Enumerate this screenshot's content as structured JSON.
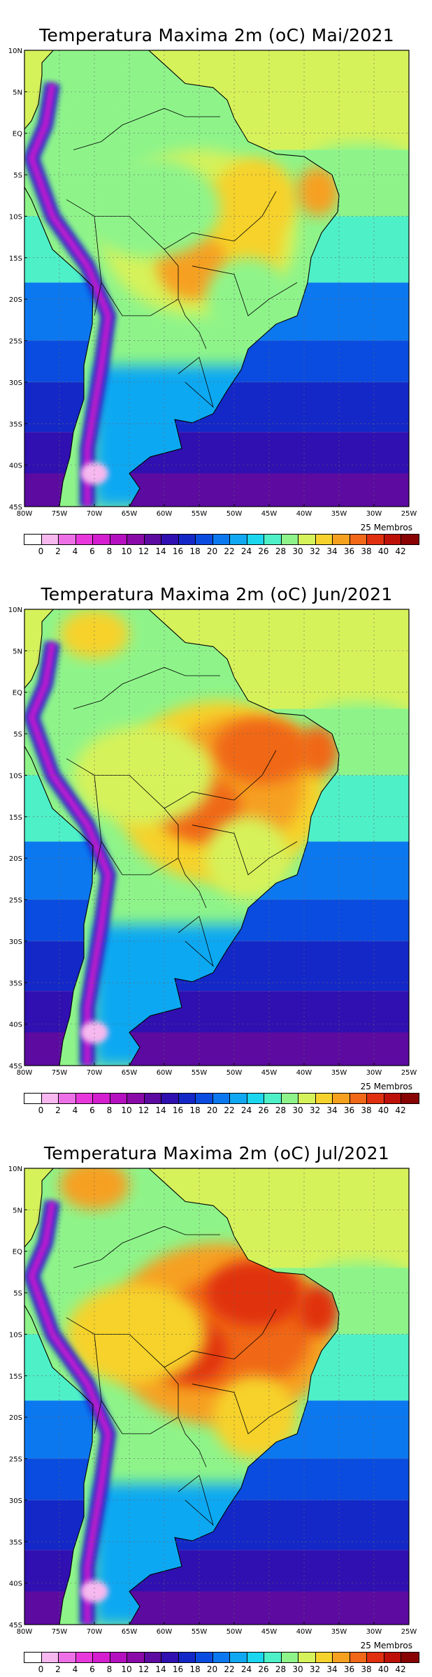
{
  "panels": [
    {
      "title": "Temperatura Maxima 2m (oC) Mai/2021",
      "members_label": "25 Membros",
      "month": "Mai"
    },
    {
      "title": "Temperatura Maxima 2m (oC) Jun/2021",
      "members_label": "25 Membros",
      "month": "Jun"
    },
    {
      "title": "Temperatura Maxima 2m (oC) Jul/2021",
      "members_label": "25 Membros",
      "month": "Jul"
    }
  ],
  "lat_labels": [
    "10N",
    "5N",
    "EQ",
    "5S",
    "10S",
    "15S",
    "20S",
    "25S",
    "30S",
    "35S",
    "40S",
    "45S"
  ],
  "lon_labels": [
    "80W",
    "75W",
    "70W",
    "65W",
    "60W",
    "55W",
    "50W",
    "45W",
    "40W",
    "35W",
    "30W",
    "25W"
  ],
  "colorbar_labels": [
    "0",
    "2",
    "4",
    "6",
    "8",
    "10",
    "12",
    "14",
    "16",
    "18",
    "20",
    "22",
    "24",
    "26",
    "28",
    "30",
    "32",
    "34",
    "36",
    "38",
    "40",
    "42"
  ],
  "colorbar_colors": [
    "#ffffff",
    "#f6b8ef",
    "#ee70e6",
    "#e838dc",
    "#d41ed0",
    "#b410c0",
    "#8a0aa8",
    "#5c0aa0",
    "#3010b0",
    "#1428c8",
    "#0a4ce0",
    "#0c78f0",
    "#10a8f2",
    "#1ad6ee",
    "#4ef0c8",
    "#8ef48a",
    "#d6f25a",
    "#f6d22c",
    "#f6a020",
    "#f06818",
    "#e03010",
    "#bc1008",
    "#880404"
  ]
}
